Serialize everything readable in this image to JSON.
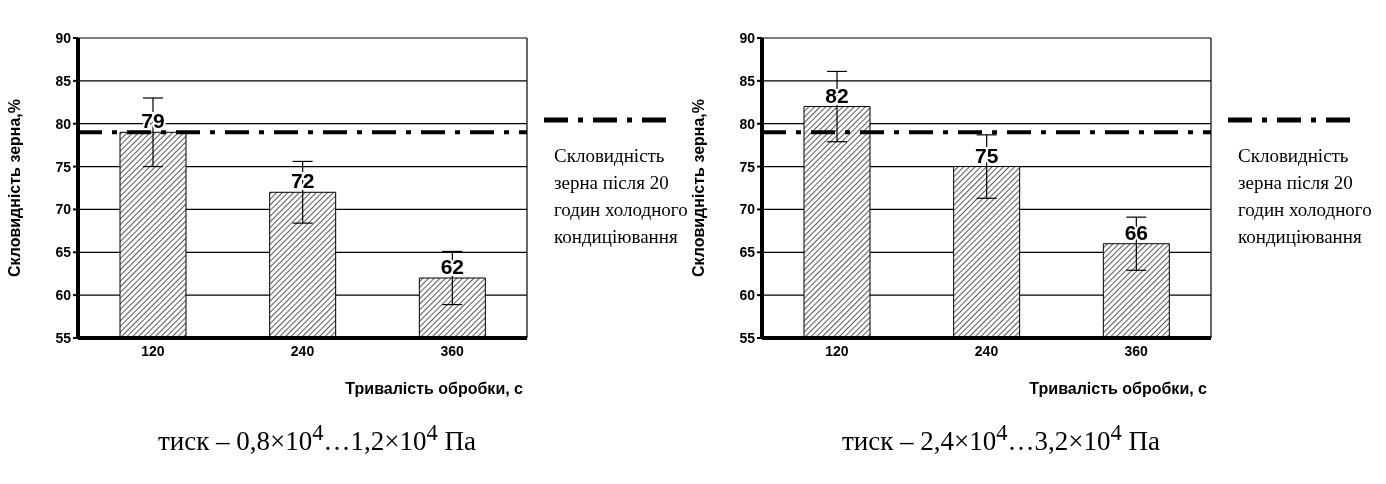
{
  "chart_data": [
    {
      "type": "bar",
      "xlabel": "Тривалість обробки, с",
      "ylabel": "Скловидність зерна,%",
      "categories": [
        "120",
        "240",
        "360"
      ],
      "series": [
        {
          "color": "#000000",
          "values": [
            79,
            72,
            62
          ],
          "errors": [
            4,
            3.6,
            3.1
          ]
        }
      ],
      "ylim": [
        55,
        90
      ],
      "yticks": [
        55,
        60,
        65,
        70,
        75,
        80,
        85,
        90
      ],
      "grid": "y",
      "data_labels": true,
      "legend": "right",
      "ref_lines": [
        {
          "axis": "y",
          "value": 79,
          "label": "Скловидність зерна після 20 годин холодного кондиціювання",
          "color": "#000000",
          "line_style": "dashdot"
        }
      ],
      "annotations": [
        "тиск – 0,8×10$^{4}$…1,2×10$^{4}$ Па"
      ]
    },
    {
      "type": "bar",
      "xlabel": "Тривалість обробки, с",
      "ylabel": "Скловидність зерна,%",
      "categories": [
        "120",
        "240",
        "360"
      ],
      "series": [
        {
          "color": "#000000",
          "values": [
            82,
            75,
            66
          ],
          "errors": [
            4.1,
            3.7,
            3.1
          ]
        }
      ],
      "ylim": [
        55,
        90
      ],
      "yticks": [
        55,
        60,
        65,
        70,
        75,
        80,
        85,
        90
      ],
      "grid": "y",
      "data_labels": true,
      "legend": "right",
      "ref_lines": [
        {
          "axis": "y",
          "value": 79,
          "label": "Скловидність зерна після 20 годин холодного кондиціювання",
          "color": "#000000",
          "line_style": "dashdot"
        }
      ],
      "annotations": [
        "тиск  – 2,4×10$^{4}$…3,2×10$^{4}$ Па"
      ]
    }
  ]
}
